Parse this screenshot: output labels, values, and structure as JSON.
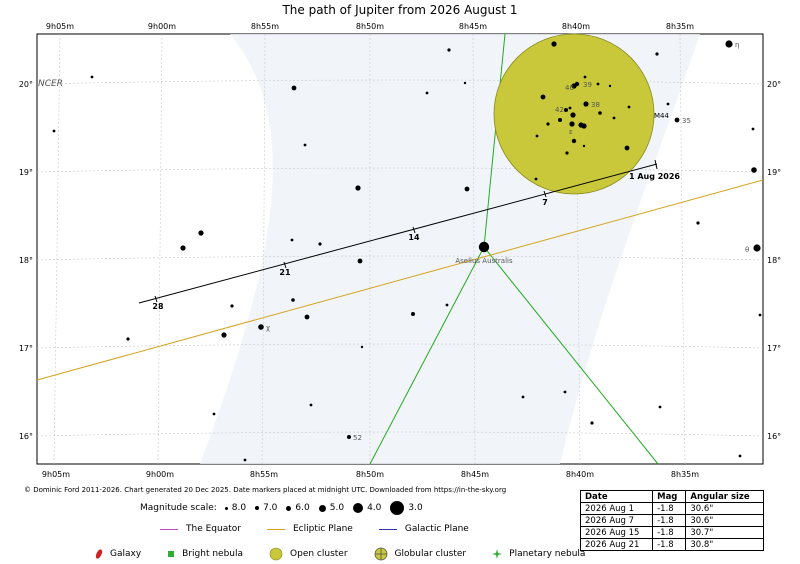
{
  "title": "The path of Jupiter from 2026 August 1",
  "ra_ticks": [
    "9h05m",
    "9h00m",
    "8h55m",
    "8h50m",
    "8h45m",
    "8h40m",
    "8h35m"
  ],
  "dec_ticks": [
    "20°",
    "19°",
    "18°",
    "17°",
    "16°"
  ],
  "constellation_label": "NCER",
  "cluster": {
    "name": "M44",
    "type": "Open cluster",
    "color": "#c8c83a"
  },
  "cluster_star_labels": [
    "40",
    "39",
    "42",
    "38",
    "ε"
  ],
  "star_labels": [
    "η",
    "35",
    "θ",
    "χ",
    "52"
  ],
  "asellus_label": "Asellus Australis",
  "path": {
    "start_label": "1 Aug 2026",
    "markers": [
      "7",
      "14",
      "21",
      "28"
    ]
  },
  "credit": "© Dominic Ford 2011-2026. Chart generated 20 Dec 2025. Date markers placed at midnight UTC. Downloaded from https://in-the-sky.org",
  "magnitude_scale": {
    "label": "Magnitude scale:",
    "items": [
      "8.0",
      "7.0",
      "6.0",
      "5.0",
      "4.0",
      "3.0"
    ]
  },
  "legend_lines": [
    {
      "label": "The Equator",
      "color": "#cc44cc"
    },
    {
      "label": "Ecliptic Plane",
      "color": "#d4a21c"
    },
    {
      "label": "Galactic Plane",
      "color": "#3333aa"
    }
  ],
  "legend_objects": [
    {
      "label": "Galaxy",
      "color": "#cc2222",
      "icon": "galaxy-icon"
    },
    {
      "label": "Bright nebula",
      "color": "#33aa33",
      "icon": "bright-nebula-icon"
    },
    {
      "label": "Open cluster",
      "color": "#c8c83a",
      "icon": "open-cluster-icon"
    },
    {
      "label": "Globular cluster",
      "color": "#c8c83a",
      "icon": "globular-cluster-icon"
    },
    {
      "label": "Planetary nebula",
      "color": "#33aa33",
      "icon": "planetary-nebula-icon"
    }
  ],
  "table": {
    "headers": [
      "Date",
      "Mag",
      "Angular size"
    ],
    "rows": [
      [
        "2026 Aug 1",
        "-1.8",
        "30.6\""
      ],
      [
        "2026 Aug 7",
        "-1.8",
        "30.6\""
      ],
      [
        "2026 Aug 15",
        "-1.8",
        "30.7\""
      ],
      [
        "2026 Aug 21",
        "-1.8",
        "30.8\""
      ]
    ]
  },
  "colors": {
    "jupiter_path": "#000000",
    "ecliptic": "#d4a21c",
    "milky_way_boundary": "#22aa22",
    "grid": "#cccccc"
  }
}
